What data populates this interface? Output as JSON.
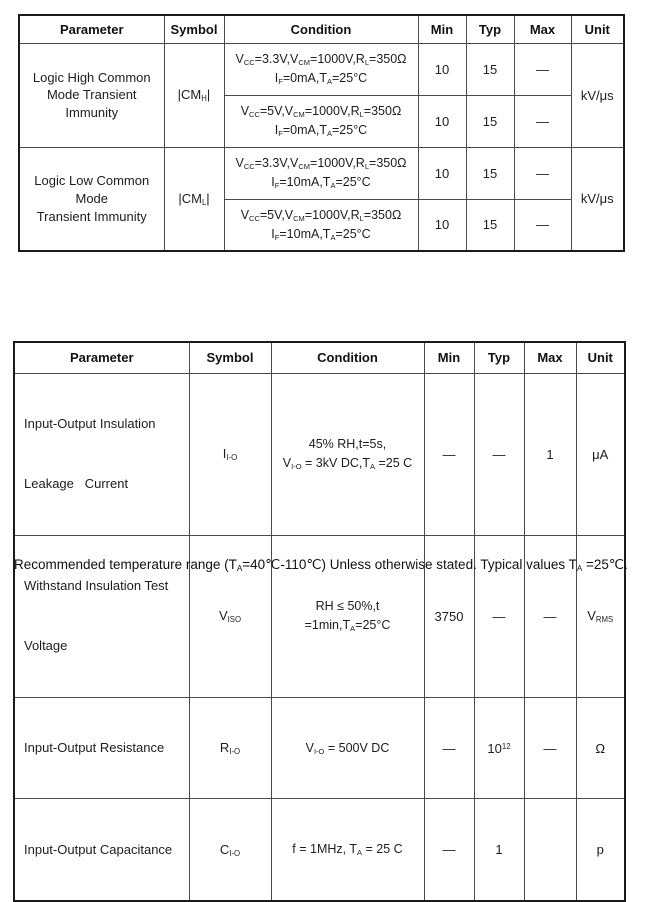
{
  "table1": {
    "headers": [
      "Parameter",
      "Symbol",
      "Condition",
      "Min",
      "Typ",
      "Max",
      "Unit"
    ],
    "groups": [
      {
        "parameter_lines": [
          "Logic High Common",
          "Mode Transient Immunity"
        ],
        "symbol": [
          {
            "t": "|CM"
          },
          {
            "t": "H",
            "v": "sub"
          },
          {
            "t": "|"
          }
        ],
        "unit": [
          {
            "t": "kV/μs"
          }
        ],
        "rows": [
          {
            "cond1": [
              {
                "t": "V"
              },
              {
                "t": "CC",
                "v": "sub"
              },
              {
                "t": "=3.3V,V"
              },
              {
                "t": "CM",
                "v": "sub"
              },
              {
                "t": "=1000V,R"
              },
              {
                "t": "L",
                "v": "sub"
              },
              {
                "t": "=350Ω"
              }
            ],
            "cond2": [
              {
                "t": "I"
              },
              {
                "t": "F",
                "v": "sub"
              },
              {
                "t": "=0mA,T"
              },
              {
                "t": "A",
                "v": "sub"
              },
              {
                "t": "=25°C"
              }
            ],
            "min": "10",
            "typ": "15",
            "max": "—"
          },
          {
            "cond1": [
              {
                "t": "V"
              },
              {
                "t": "CC",
                "v": "sub"
              },
              {
                "t": "=5V,V"
              },
              {
                "t": "CM",
                "v": "sub"
              },
              {
                "t": "=1000V,R"
              },
              {
                "t": "L",
                "v": "sub"
              },
              {
                "t": "=350Ω"
              }
            ],
            "cond2": [
              {
                "t": "I"
              },
              {
                "t": "F",
                "v": "sub"
              },
              {
                "t": "=0mA,T"
              },
              {
                "t": "A",
                "v": "sub"
              },
              {
                "t": "=25°C"
              }
            ],
            "min": "10",
            "typ": "15",
            "max": "—"
          }
        ]
      },
      {
        "parameter_lines": [
          "Logic Low Common Mode",
          "Transient Immunity"
        ],
        "symbol": [
          {
            "t": "|CM"
          },
          {
            "t": "L",
            "v": "sub"
          },
          {
            "t": "|"
          }
        ],
        "unit": [
          {
            "t": "kV/μs"
          }
        ],
        "rows": [
          {
            "cond1": [
              {
                "t": "V"
              },
              {
                "t": "CC",
                "v": "sub"
              },
              {
                "t": "=3.3V,V"
              },
              {
                "t": "CM",
                "v": "sub"
              },
              {
                "t": "=1000V,R"
              },
              {
                "t": "L",
                "v": "sub"
              },
              {
                "t": "=350Ω"
              }
            ],
            "cond2": [
              {
                "t": "I"
              },
              {
                "t": "F",
                "v": "sub"
              },
              {
                "t": "=10mA,T"
              },
              {
                "t": "A",
                "v": "sub"
              },
              {
                "t": "=25°C"
              }
            ],
            "min": "10",
            "typ": "15",
            "max": "—"
          },
          {
            "cond1": [
              {
                "t": "V"
              },
              {
                "t": "CC",
                "v": "sub"
              },
              {
                "t": "=5V,V"
              },
              {
                "t": "CM",
                "v": "sub"
              },
              {
                "t": "=1000V,R"
              },
              {
                "t": "L",
                "v": "sub"
              },
              {
                "t": "=350Ω"
              }
            ],
            "cond2": [
              {
                "t": "I"
              },
              {
                "t": "F",
                "v": "sub"
              },
              {
                "t": "=10mA,T"
              },
              {
                "t": "A",
                "v": "sub"
              },
              {
                "t": "=25°C"
              }
            ],
            "min": "10",
            "typ": "15",
            "max": "—"
          }
        ]
      }
    ]
  },
  "table2": {
    "headers": [
      "Parameter",
      "Symbol",
      "Condition",
      "Min",
      "Typ",
      "Max",
      "Unit"
    ],
    "rows": [
      {
        "parameter_lines": [
          "Input-Output Insulation",
          "Leakage   Current"
        ],
        "symbol": [
          {
            "t": "I"
          },
          {
            "t": "I-O",
            "v": "sub"
          }
        ],
        "cond_line1": [
          {
            "t": "45% RH,t=5s,"
          }
        ],
        "cond_line2": [
          {
            "t": "V"
          },
          {
            "t": "I-O",
            "v": "sub"
          },
          {
            "t": " = 3kV DC,T"
          },
          {
            "t": "A",
            "v": "sub"
          },
          {
            "t": " =25 C"
          }
        ],
        "min": "—",
        "typ": "—",
        "max": "1",
        "unit": [
          {
            "t": "μA"
          }
        ]
      },
      {
        "parameter_lines": [
          "Withstand Insulation Test",
          "Voltage"
        ],
        "symbol": [
          {
            "t": "V"
          },
          {
            "t": "ISO",
            "v": "sub"
          }
        ],
        "cond_line1": [
          {
            "t": "RH ≤ 50%,t =1min,T"
          },
          {
            "t": "A",
            "v": "sub"
          },
          {
            "t": "=25°C"
          }
        ],
        "min": "3750",
        "typ": "—",
        "max": "—",
        "unit": [
          {
            "t": "V"
          },
          {
            "t": "RMS",
            "v": "sub"
          }
        ]
      },
      {
        "parameter_lines": [
          "Input-Output Resistance"
        ],
        "symbol": [
          {
            "t": "R"
          },
          {
            "t": "I-O",
            "v": "sub"
          }
        ],
        "cond_line1": [
          {
            "t": "V"
          },
          {
            "t": "I-O",
            "v": "sub"
          },
          {
            "t": " = 500V DC"
          }
        ],
        "min": "—",
        "typ_rich": [
          {
            "t": "10"
          },
          {
            "t": "12",
            "v": "sup"
          }
        ],
        "max": "—",
        "unit": [
          {
            "t": "Ω"
          }
        ]
      },
      {
        "parameter_lines": [
          "Input-Output Capacitance"
        ],
        "symbol": [
          {
            "t": "C"
          },
          {
            "t": "I-O",
            "v": "sub"
          }
        ],
        "cond_line1": [
          {
            "t": "f = 1MHz, T"
          },
          {
            "t": "A",
            "v": "sub"
          },
          {
            "t": " = 25 C"
          }
        ],
        "min": "—",
        "typ": "1",
        "max": "",
        "unit": [
          {
            "t": "p"
          }
        ]
      }
    ]
  },
  "footnote": [
    {
      "t": "Recommended temperature range (T"
    },
    {
      "t": "A",
      "v": "sub"
    },
    {
      "t": "=40℃-110℃) Unless otherwise stated. Typical values T"
    },
    {
      "t": "A",
      "v": "sub"
    },
    {
      "t": " =25℃."
    }
  ]
}
